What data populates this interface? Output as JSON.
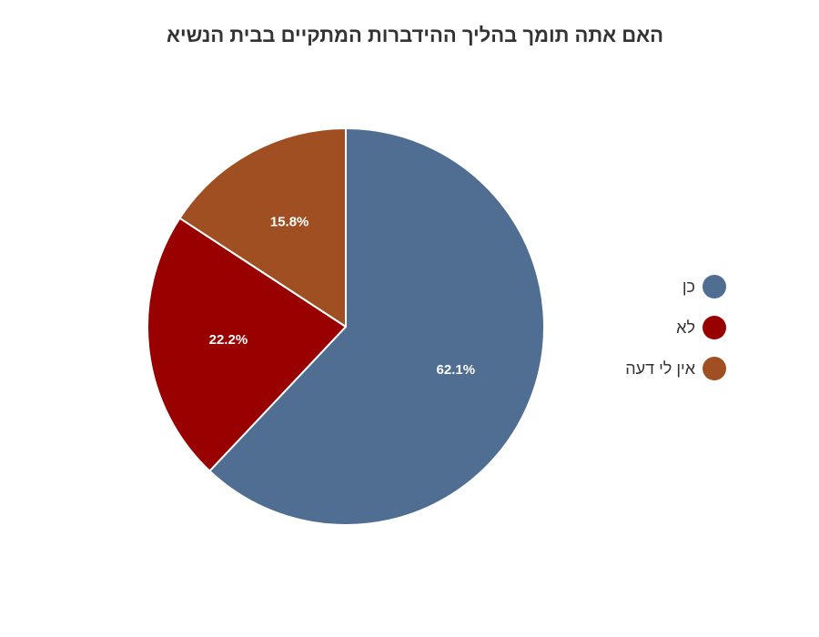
{
  "chart_data": {
    "type": "pie",
    "title": "האם אתה תומך בהליך ההידברות המתקיים בבית הנשיא",
    "slices": [
      {
        "label": "כן",
        "value": 62.1,
        "display": "62.1%",
        "color": "#4f6e91"
      },
      {
        "label": "לא",
        "value": 22.2,
        "display": "22.2%",
        "color": "#990000"
      },
      {
        "label": "אין לי דעה",
        "value": 15.8,
        "display": "15.8%",
        "color": "#a04f22"
      }
    ],
    "legend_position": "right"
  }
}
